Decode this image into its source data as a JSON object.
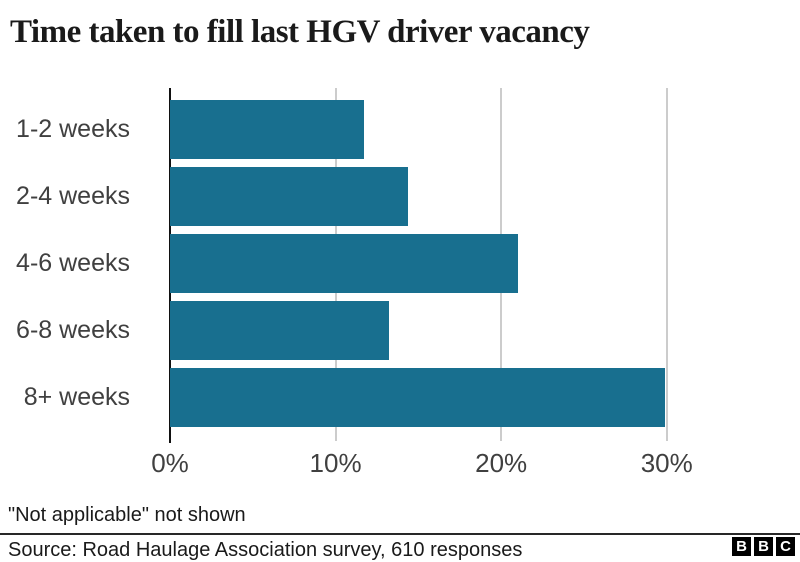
{
  "title": "Time taken to fill last HGV driver vacancy",
  "chart_data": {
    "type": "bar",
    "orientation": "horizontal",
    "title": "Time taken to fill last HGV driver vacancy",
    "categories": [
      "1-2 weeks",
      "2-4 weeks",
      "4-6 weeks",
      "6-8 weeks",
      "8+ weeks"
    ],
    "values": [
      11.7,
      14.4,
      21.0,
      13.2,
      29.9
    ],
    "unit": "%",
    "xlabel": "",
    "ylabel": "",
    "xlim": [
      0,
      33.7
    ],
    "x_ticks": [
      {
        "value": 0,
        "label": "0%"
      },
      {
        "value": 10,
        "label": "10%"
      },
      {
        "value": 20,
        "label": "20%"
      },
      {
        "value": 30,
        "label": "30%"
      }
    ],
    "grid": true,
    "legend": false,
    "colors": {
      "bar": "#186F8F",
      "gridline": "#CCCCCC",
      "axis_line": "#111111",
      "tick_label": "#404040",
      "title_text": "#1A1A1A"
    }
  },
  "footnote": "\"Not applicable\" not shown",
  "source": "Source: Road Haulage Association survey, 610 responses",
  "logo": {
    "name": "BBC",
    "letters": [
      "B",
      "B",
      "C"
    ]
  }
}
